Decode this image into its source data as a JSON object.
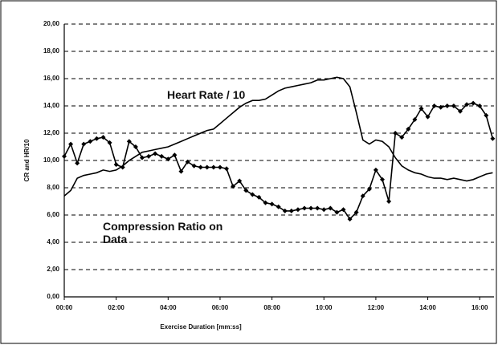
{
  "chart_data": {
    "type": "line",
    "xlabel": "Exercise Duration [mm:ss]",
    "ylabel": "CR and HR/10",
    "x": [
      0,
      0.25,
      0.5,
      0.75,
      1,
      1.25,
      1.5,
      1.75,
      2,
      2.25,
      2.5,
      2.75,
      3,
      3.25,
      3.5,
      3.75,
      4,
      4.25,
      4.5,
      4.75,
      5,
      5.25,
      5.5,
      5.75,
      6,
      6.25,
      6.5,
      6.75,
      7,
      7.25,
      7.5,
      7.75,
      8,
      8.25,
      8.5,
      8.75,
      9,
      9.25,
      9.5,
      9.75,
      10,
      10.25,
      10.5,
      10.75,
      11,
      11.25,
      11.5,
      11.75,
      12,
      12.25,
      12.5,
      12.75,
      13,
      13.25,
      13.5,
      13.75,
      14,
      14.25,
      14.5,
      14.75,
      15,
      15.25,
      15.5,
      15.75,
      16,
      16.25,
      16.5
    ],
    "series": [
      {
        "name": "Heart Rate / 10",
        "color": "#000000",
        "marker": "none",
        "values": [
          7.4,
          7.8,
          8.7,
          8.9,
          9.0,
          9.1,
          9.3,
          9.2,
          9.3,
          9.6,
          10.0,
          10.3,
          10.6,
          10.7,
          10.8,
          10.9,
          11.0,
          11.2,
          11.4,
          11.6,
          11.8,
          12.0,
          12.2,
          12.3,
          12.7,
          13.1,
          13.5,
          13.9,
          14.2,
          14.4,
          14.4,
          14.5,
          14.8,
          15.1,
          15.3,
          15.4,
          15.5,
          15.6,
          15.7,
          15.9,
          15.9,
          16.0,
          16.1,
          16.0,
          15.4,
          13.5,
          11.5,
          11.2,
          11.5,
          11.4,
          11.0,
          10.2,
          9.6,
          9.3,
          9.1,
          9.0,
          8.8,
          8.7,
          8.7,
          8.6,
          8.7,
          8.6,
          8.5,
          8.6,
          8.8,
          9.0,
          9.1
        ]
      },
      {
        "name": "Compression Ratio on Data",
        "color": "#000000",
        "marker": "diamond",
        "values": [
          10.3,
          11.2,
          9.8,
          11.2,
          11.4,
          11.6,
          11.7,
          11.3,
          9.7,
          9.5,
          11.4,
          11.0,
          10.2,
          10.3,
          10.5,
          10.3,
          10.1,
          10.4,
          9.2,
          9.9,
          9.6,
          9.5,
          9.5,
          9.5,
          9.5,
          9.4,
          8.1,
          8.5,
          7.8,
          7.5,
          7.3,
          6.9,
          6.8,
          6.6,
          6.3,
          6.3,
          6.4,
          6.5,
          6.5,
          6.5,
          6.4,
          6.5,
          6.2,
          6.4,
          5.7,
          6.2,
          7.4,
          7.9,
          9.3,
          8.6,
          7.0,
          12,
          11.7,
          12.3,
          13,
          13.8,
          13.2,
          14,
          13.9,
          14,
          14,
          13.6,
          14.1,
          14.2,
          14,
          13.3,
          11.6
        ]
      }
    ],
    "xlim": [
      0,
      16.55
    ],
    "xticks": [
      {
        "value": 0,
        "label": "00:00"
      },
      {
        "value": 2,
        "label": "02:00"
      },
      {
        "value": 4,
        "label": "04:00"
      },
      {
        "value": 6,
        "label": "06:00"
      },
      {
        "value": 8,
        "label": "08:00"
      },
      {
        "value": 10,
        "label": "10:00"
      },
      {
        "value": 12,
        "label": "12:00"
      },
      {
        "value": 14,
        "label": "14:00"
      },
      {
        "value": 16,
        "label": "16:00"
      }
    ],
    "ylim": [
      0,
      20
    ],
    "yticks": [
      {
        "value": 0,
        "label": "0,00"
      },
      {
        "value": 2,
        "label": "2,00"
      },
      {
        "value": 4,
        "label": "4,00"
      },
      {
        "value": 6,
        "label": "6,00"
      },
      {
        "value": 8,
        "label": "8,00"
      },
      {
        "value": 10,
        "label": "10,00"
      },
      {
        "value": 12,
        "label": "12,00"
      },
      {
        "value": 14,
        "label": "14,00"
      },
      {
        "value": 16,
        "label": "16,00"
      },
      {
        "value": 18,
        "label": "18,00"
      },
      {
        "value": 20,
        "label": "20,00"
      }
    ],
    "grid": true
  }
}
